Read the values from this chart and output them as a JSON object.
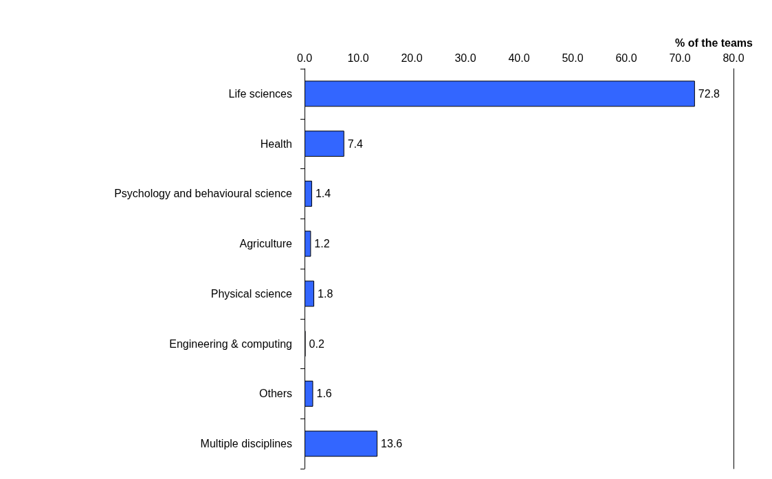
{
  "chart_data": {
    "type": "bar",
    "orientation": "horizontal",
    "xlabel": "% of the teams",
    "categories": [
      "Life sciences",
      "Health",
      "Psychology and behavioural science",
      "Agriculture",
      "Physical science",
      "Engineering & computing",
      "Others",
      "Multiple disciplines"
    ],
    "values": [
      72.8,
      7.4,
      1.4,
      1.2,
      1.8,
      0.2,
      1.6,
      13.6
    ],
    "color": "#3366ff",
    "xlim": [
      0,
      80
    ],
    "xticks": [
      {
        "value": 0,
        "label": "0.0"
      },
      {
        "value": 10,
        "label": "10.0"
      },
      {
        "value": 20,
        "label": "20.0"
      },
      {
        "value": 30,
        "label": "30.0"
      },
      {
        "value": 40,
        "label": "40.0"
      },
      {
        "value": 50,
        "label": "50.0"
      },
      {
        "value": 60,
        "label": "60.0"
      },
      {
        "value": 70,
        "label": "70.0"
      },
      {
        "value": 80,
        "label": "80.0"
      }
    ],
    "grid": false,
    "data_labels": true
  }
}
